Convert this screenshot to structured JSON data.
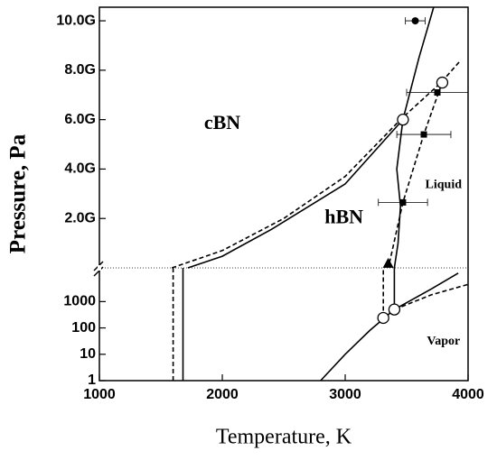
{
  "chart_data": [
    {
      "type": "line",
      "ylabel": "Pressure, Pa",
      "xlim": [
        1000,
        4000
      ],
      "ylim": [
        0,
        10550000000
      ],
      "yticks": [
        {
          "value": 2000000000,
          "label": "2.0G"
        },
        {
          "value": 4000000000,
          "label": "4.0G"
        },
        {
          "value": 6000000000,
          "label": "6.0G"
        },
        {
          "value": 8000000000,
          "label": "8.0G"
        },
        {
          "value": 10000000000,
          "label": "10.0G"
        }
      ],
      "series": [
        {
          "style": "solid",
          "color": "#000000",
          "x": [
            1720,
            2000,
            2400,
            3000,
            3470
          ],
          "values": [
            0,
            470000000,
            1560000000,
            3400000000,
            6000000000
          ]
        },
        {
          "style": "dashed",
          "color": "#000000",
          "x": [
            1590,
            2000,
            2500,
            3000,
            3450,
            3780,
            3940
          ],
          "values": [
            0,
            700000000,
            2000000000,
            3700000000,
            6000000000,
            7500000000,
            8400000000
          ]
        },
        {
          "style": "solid",
          "color": "#000000",
          "x": [
            3720,
            3600,
            3470,
            3420,
            3450,
            3430,
            3400
          ],
          "values": [
            10550000000,
            8500000000,
            6000000000,
            4000000000,
            2500000000,
            1000000000,
            0
          ]
        },
        {
          "style": "dashed",
          "color": "#000000",
          "x": [
            3360,
            3470,
            3640,
            3760,
            3790
          ],
          "values": [
            200000000,
            2650000000,
            5400000000,
            7100000000,
            7500000000
          ]
        }
      ],
      "markers": [
        {
          "shape": "circle-filled",
          "x": 3570,
          "value": 10000000000,
          "xerr": 80
        },
        {
          "shape": "square",
          "x": 3470,
          "value": 2650000000,
          "xerr": 200
        },
        {
          "shape": "square",
          "x": 3640,
          "value": 5400000000,
          "xerr": 220
        },
        {
          "shape": "square",
          "x": 3750,
          "value": 7100000000,
          "xerr": 250
        },
        {
          "shape": "circle-open",
          "x": 3470,
          "value": 6000000000
        },
        {
          "shape": "circle-open",
          "x": 3790,
          "value": 7500000000
        },
        {
          "shape": "triangle",
          "x": 3350,
          "value": 150000000
        }
      ],
      "annotations": [
        {
          "text": "cBN",
          "x": 2000,
          "value": 5800000000,
          "size": "large"
        },
        {
          "text": "hBN",
          "x": 2990,
          "value": 2000000000,
          "size": "large"
        },
        {
          "text": "Liquid",
          "x": 3800,
          "value": 3350000000,
          "size": "small"
        }
      ]
    },
    {
      "type": "line",
      "xlabel": "Temperature, K",
      "log": true,
      "xlim": [
        1000,
        4000
      ],
      "ylim": [
        1,
        19000
      ],
      "xticks": [
        1000,
        2000,
        3000,
        4000
      ],
      "yticks": [
        1,
        10,
        100,
        1000
      ],
      "series": [
        {
          "style": "solid",
          "color": "#000000",
          "x": [
            1680,
            1680
          ],
          "values": [
            1,
            19000
          ]
        },
        {
          "style": "dashed",
          "color": "#000000",
          "x": [
            1600,
            1600
          ],
          "values": [
            1,
            19000
          ]
        },
        {
          "style": "dashed",
          "color": "#000000",
          "x": [
            3310,
            3310
          ],
          "values": [
            240,
            19000
          ]
        },
        {
          "style": "solid",
          "color": "#000000",
          "x": [
            3400,
            3400
          ],
          "values": [
            500,
            19000
          ]
        },
        {
          "style": "solid",
          "color": "#000000",
          "x": [
            2800,
            3000,
            3200,
            3400,
            3700,
            3920
          ],
          "values": [
            1,
            10,
            80,
            500,
            3000,
            12000
          ]
        },
        {
          "style": "dashed",
          "color": "#000000",
          "x": [
            3310,
            3400,
            3700,
            4000
          ],
          "values": [
            240,
            500,
            1800,
            4500
          ]
        }
      ],
      "markers": [
        {
          "shape": "circle-open",
          "x": 3310,
          "value": 240
        },
        {
          "shape": "circle-open",
          "x": 3400,
          "value": 500
        }
      ],
      "annotations": [
        {
          "text": "Vapor",
          "x": 3800,
          "value": 30,
          "size": "small"
        }
      ]
    }
  ]
}
